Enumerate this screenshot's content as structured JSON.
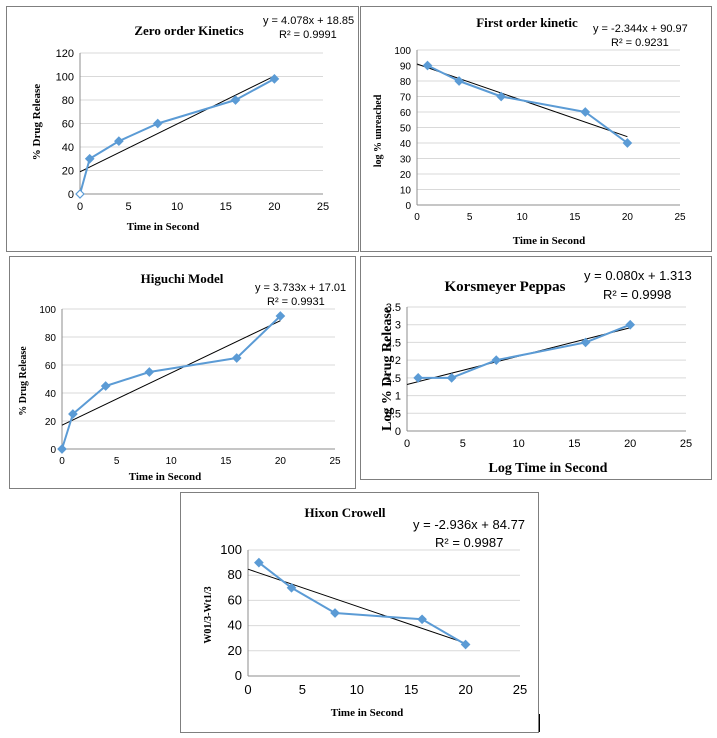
{
  "colors": {
    "series": "#5B9BD5",
    "series_light": "#BDD7EE",
    "trend": "#000000",
    "grid": "#d9d9d9",
    "axis": "#8c8c8c",
    "frame": "#7f7f7f"
  },
  "chart_data": [
    {
      "type": "line",
      "title": "Zero order Kinetics",
      "equation": "y = 4.078x + 18.85",
      "r2": "R² = 0.9991",
      "xlabel": "Time in Second",
      "ylabel": "% Drug Release",
      "xlim": [
        0,
        25
      ],
      "ylim": [
        0,
        120
      ],
      "xticks": [
        "0",
        "5",
        "10",
        "15",
        "20",
        "25"
      ],
      "yticks": [
        "0",
        "20",
        "40",
        "60",
        "80",
        "100",
        "120"
      ],
      "grid": true,
      "series": [
        {
          "x": [
            0,
            1,
            4,
            8,
            16,
            20
          ],
          "y": [
            0,
            30,
            45,
            60,
            80,
            98
          ]
        }
      ],
      "trendline": {
        "slope": 4.078,
        "intercept": 18.85,
        "x": [
          0,
          20
        ]
      }
    },
    {
      "type": "line",
      "title": "First order kinetic",
      "equation": "y = -2.344x + 90.97",
      "r2": "R² = 0.9231",
      "xlabel": "Time in Second",
      "ylabel": "log % unreached",
      "xlim": [
        0,
        25
      ],
      "ylim": [
        0,
        100
      ],
      "xticks": [
        "0",
        "5",
        "10",
        "15",
        "20",
        "25"
      ],
      "yticks": [
        "0",
        "10",
        "20",
        "30",
        "40",
        "50",
        "60",
        "70",
        "80",
        "90",
        "100"
      ],
      "grid": true,
      "series": [
        {
          "x": [
            1,
            4,
            8,
            16,
            20
          ],
          "y": [
            90,
            80,
            70,
            60,
            40
          ]
        }
      ],
      "trendline": {
        "slope": -2.344,
        "intercept": 90.97,
        "x": [
          0,
          20
        ]
      }
    },
    {
      "type": "line",
      "title": "Higuchi Model",
      "equation": "y = 3.733x + 17.01",
      "r2": "R² = 0.9931",
      "xlabel": "Time in Second",
      "ylabel": "% Drug Release",
      "xlim": [
        0,
        25
      ],
      "ylim": [
        0,
        100
      ],
      "xticks": [
        "0",
        "5",
        "10",
        "15",
        "20",
        "25"
      ],
      "yticks": [
        "0",
        "20",
        "40",
        "60",
        "80",
        "100"
      ],
      "grid": true,
      "series": [
        {
          "x": [
            0,
            1,
            4,
            8,
            16,
            20
          ],
          "y": [
            0,
            25,
            45,
            55,
            65,
            95
          ]
        }
      ],
      "trendline": {
        "slope": 3.733,
        "intercept": 17.01,
        "x": [
          0,
          20
        ]
      }
    },
    {
      "type": "line",
      "title": "Korsmeyer Peppas",
      "equation": "y = 0.080x + 1.313",
      "r2": "R² = 0.9998",
      "xlabel": "Log Time  in Second",
      "ylabel": "Log % Drug Release",
      "xlim": [
        0,
        25
      ],
      "ylim": [
        0,
        3.5
      ],
      "xticks": [
        "0",
        "5",
        "10",
        "15",
        "20",
        "25"
      ],
      "yticks": [
        "0",
        "0.5",
        "1",
        "1.5",
        "2",
        "2.5",
        "3",
        "3.5"
      ],
      "grid": true,
      "series": [
        {
          "x": [
            1,
            4,
            8,
            16,
            20
          ],
          "y": [
            1.5,
            1.5,
            2.0,
            2.5,
            3.0
          ]
        }
      ],
      "trendline": {
        "slope": 0.08,
        "intercept": 1.313,
        "x": [
          0,
          20
        ]
      }
    },
    {
      "type": "line",
      "title": "Hixon Crowell",
      "equation": "y = -2.936x + 84.77",
      "r2": "R² = 0.9987",
      "xlabel": "Time in Second",
      "ylabel": "W01/3-Wt1/3",
      "xlim": [
        0,
        25
      ],
      "ylim": [
        0,
        100
      ],
      "xticks": [
        "0",
        "5",
        "10",
        "15",
        "20",
        "25"
      ],
      "yticks": [
        "0",
        "20",
        "40",
        "60",
        "80",
        "100"
      ],
      "grid": true,
      "series": [
        {
          "x": [
            1,
            4,
            8,
            16,
            20
          ],
          "y": [
            90,
            70,
            50,
            45,
            25
          ]
        }
      ],
      "trendline": {
        "slope": -2.936,
        "intercept": 84.77,
        "x": [
          0,
          20
        ]
      }
    }
  ]
}
